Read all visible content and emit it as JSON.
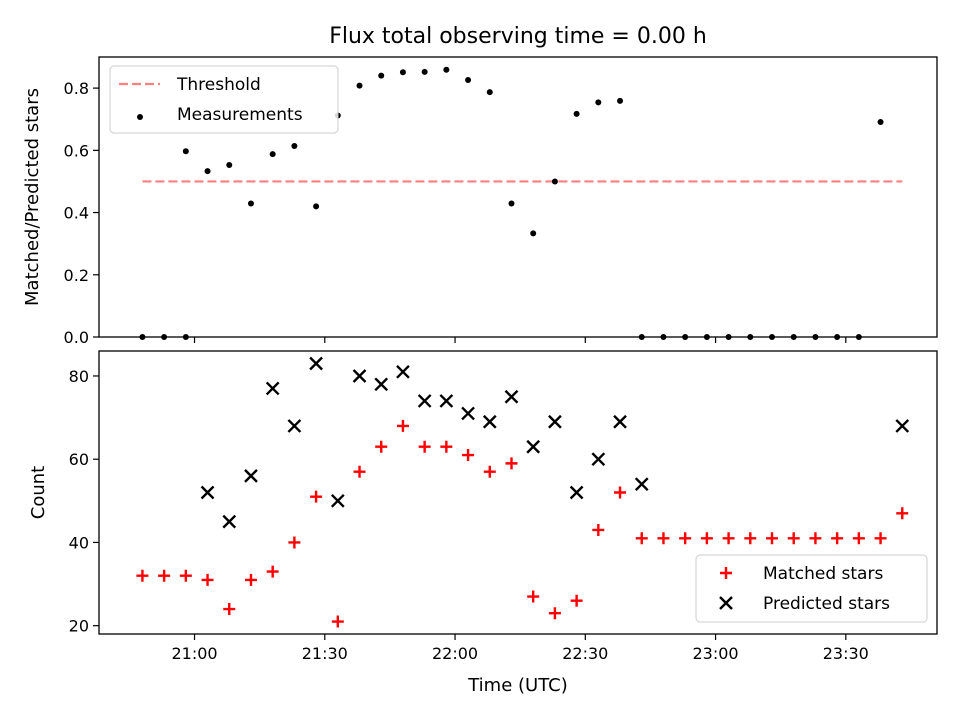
{
  "chart_data": [
    {
      "type": "scatter",
      "title": "Flux total observing time = 0.00 h",
      "xlabel": "",
      "ylabel": "Matched/Predicted stars",
      "xlim": [
        "20:38",
        "23:51"
      ],
      "ylim": [
        0,
        0.9
      ],
      "yticks": [
        0.0,
        0.2,
        0.4,
        0.6,
        0.8
      ],
      "ytick_labels": [
        "0.0",
        "0.2",
        "0.4",
        "0.6",
        "0.8"
      ],
      "xticks": [
        "21:00",
        "21:30",
        "22:00",
        "22:30",
        "23:00",
        "23:30"
      ],
      "show_xtick_labels": false,
      "legend_position": "top-left",
      "series": [
        {
          "name": "Threshold",
          "kind": "line",
          "style": "dashed",
          "color": "#ff7f7f",
          "points": [
            {
              "x": "20:48",
              "y": 0.5
            },
            {
              "x": "23:43",
              "y": 0.5
            }
          ]
        },
        {
          "name": "Measurements",
          "kind": "scatter",
          "marker": "dot",
          "color": "#000000",
          "points": [
            {
              "x": "20:48",
              "y": 0.0
            },
            {
              "x": "20:53",
              "y": 0.0
            },
            {
              "x": "20:58",
              "y": 0.0
            },
            {
              "x": "20:58",
              "y": 0.597
            },
            {
              "x": "21:03",
              "y": 0.533
            },
            {
              "x": "21:08",
              "y": 0.553
            },
            {
              "x": "21:13",
              "y": 0.429
            },
            {
              "x": "21:18",
              "y": 0.588
            },
            {
              "x": "21:23",
              "y": 0.614
            },
            {
              "x": "21:28",
              "y": 0.42
            },
            {
              "x": "21:33",
              "y": 0.712
            },
            {
              "x": "21:38",
              "y": 0.808
            },
            {
              "x": "21:43",
              "y": 0.84
            },
            {
              "x": "21:48",
              "y": 0.851
            },
            {
              "x": "21:53",
              "y": 0.852
            },
            {
              "x": "21:58",
              "y": 0.859
            },
            {
              "x": "22:03",
              "y": 0.826
            },
            {
              "x": "22:08",
              "y": 0.787
            },
            {
              "x": "22:13",
              "y": 0.429
            },
            {
              "x": "22:18",
              "y": 0.333
            },
            {
              "x": "22:23",
              "y": 0.5
            },
            {
              "x": "22:28",
              "y": 0.717
            },
            {
              "x": "22:33",
              "y": 0.754
            },
            {
              "x": "22:38",
              "y": 0.759
            },
            {
              "x": "22:43",
              "y": 0.0
            },
            {
              "x": "22:48",
              "y": 0.0
            },
            {
              "x": "22:53",
              "y": 0.0
            },
            {
              "x": "22:58",
              "y": 0.0
            },
            {
              "x": "23:03",
              "y": 0.0
            },
            {
              "x": "23:08",
              "y": 0.0
            },
            {
              "x": "23:13",
              "y": 0.0
            },
            {
              "x": "23:18",
              "y": 0.0
            },
            {
              "x": "23:23",
              "y": 0.0
            },
            {
              "x": "23:28",
              "y": 0.0
            },
            {
              "x": "23:33",
              "y": 0.0
            },
            {
              "x": "23:38",
              "y": 0.691
            }
          ]
        }
      ]
    },
    {
      "type": "scatter",
      "title": "",
      "xlabel": "Time (UTC)",
      "ylabel": "Count",
      "xlim": [
        "20:38",
        "23:51"
      ],
      "ylim": [
        18,
        86
      ],
      "yticks": [
        20,
        40,
        60,
        80
      ],
      "ytick_labels": [
        "20",
        "40",
        "60",
        "80"
      ],
      "xticks": [
        "21:00",
        "21:30",
        "22:00",
        "22:30",
        "23:00",
        "23:30"
      ],
      "show_xtick_labels": true,
      "legend_position": "bottom-right",
      "series": [
        {
          "name": "Matched stars",
          "kind": "scatter",
          "marker": "plus",
          "color": "#ff0000",
          "points": [
            {
              "x": "20:48",
              "y": 32
            },
            {
              "x": "20:53",
              "y": 32
            },
            {
              "x": "20:58",
              "y": 32
            },
            {
              "x": "21:03",
              "y": 31
            },
            {
              "x": "21:08",
              "y": 24
            },
            {
              "x": "21:13",
              "y": 31
            },
            {
              "x": "21:18",
              "y": 33
            },
            {
              "x": "21:23",
              "y": 40
            },
            {
              "x": "21:28",
              "y": 51
            },
            {
              "x": "21:33",
              "y": 21
            },
            {
              "x": "21:38",
              "y": 57
            },
            {
              "x": "21:43",
              "y": 63
            },
            {
              "x": "21:48",
              "y": 68
            },
            {
              "x": "21:53",
              "y": 63
            },
            {
              "x": "21:58",
              "y": 63
            },
            {
              "x": "22:03",
              "y": 61
            },
            {
              "x": "22:08",
              "y": 57
            },
            {
              "x": "22:13",
              "y": 59
            },
            {
              "x": "22:18",
              "y": 27
            },
            {
              "x": "22:23",
              "y": 23
            },
            {
              "x": "22:28",
              "y": 26
            },
            {
              "x": "22:33",
              "y": 43
            },
            {
              "x": "22:38",
              "y": 52
            },
            {
              "x": "22:43",
              "y": 41
            },
            {
              "x": "22:48",
              "y": 41
            },
            {
              "x": "22:53",
              "y": 41
            },
            {
              "x": "22:58",
              "y": 41
            },
            {
              "x": "23:03",
              "y": 41
            },
            {
              "x": "23:08",
              "y": 41
            },
            {
              "x": "23:13",
              "y": 41
            },
            {
              "x": "23:18",
              "y": 41
            },
            {
              "x": "23:23",
              "y": 41
            },
            {
              "x": "23:28",
              "y": 41
            },
            {
              "x": "23:33",
              "y": 41
            },
            {
              "x": "23:38",
              "y": 41
            },
            {
              "x": "23:43",
              "y": 47
            }
          ]
        },
        {
          "name": "Predicted stars",
          "kind": "scatter",
          "marker": "x",
          "color": "#000000",
          "points": [
            {
              "x": "21:03",
              "y": 52
            },
            {
              "x": "21:08",
              "y": 45
            },
            {
              "x": "21:13",
              "y": 56
            },
            {
              "x": "21:18",
              "y": 77
            },
            {
              "x": "21:23",
              "y": 68
            },
            {
              "x": "21:28",
              "y": 83
            },
            {
              "x": "21:33",
              "y": 50
            },
            {
              "x": "21:38",
              "y": 80
            },
            {
              "x": "21:43",
              "y": 78
            },
            {
              "x": "21:48",
              "y": 81
            },
            {
              "x": "21:53",
              "y": 74
            },
            {
              "x": "21:58",
              "y": 74
            },
            {
              "x": "22:03",
              "y": 71
            },
            {
              "x": "22:08",
              "y": 69
            },
            {
              "x": "22:13",
              "y": 75
            },
            {
              "x": "22:18",
              "y": 63
            },
            {
              "x": "22:23",
              "y": 69
            },
            {
              "x": "22:28",
              "y": 52
            },
            {
              "x": "22:33",
              "y": 60
            },
            {
              "x": "22:38",
              "y": 69
            },
            {
              "x": "22:43",
              "y": 54
            },
            {
              "x": "23:43",
              "y": 68
            }
          ]
        }
      ]
    }
  ]
}
